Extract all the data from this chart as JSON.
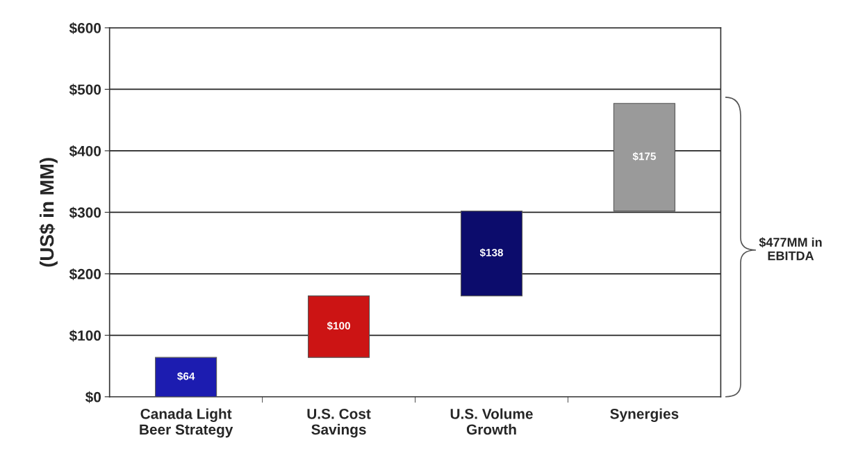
{
  "chart_data": {
    "type": "bar",
    "ylabel": "(US$ in MM)",
    "categories": [
      "Canada Light\nBeer Strategy",
      "U.S. Cost\nSavings",
      "U.S. Volume\nGrowth",
      "Synergies"
    ],
    "values": [
      64,
      100,
      138,
      175
    ],
    "base": [
      0,
      64,
      164,
      302
    ],
    "colors": [
      "#1c1cb0",
      "#cc1414",
      "#0c0c6c",
      "#9a9a9a"
    ],
    "value_labels": [
      "$64",
      "$100",
      "$138",
      "$175"
    ],
    "annotations": [
      "$477MM in\nEBITDA"
    ],
    "ylim": [
      0,
      600
    ],
    "yticks": [
      {
        "value": 0,
        "label": "$0"
      },
      {
        "value": 100,
        "label": "$100"
      },
      {
        "value": 200,
        "label": "$200"
      },
      {
        "value": 300,
        "label": "$300"
      },
      {
        "value": 400,
        "label": "$400"
      },
      {
        "value": 500,
        "label": "$500"
      },
      {
        "value": 600,
        "label": "$600"
      }
    ],
    "grid": "y"
  }
}
